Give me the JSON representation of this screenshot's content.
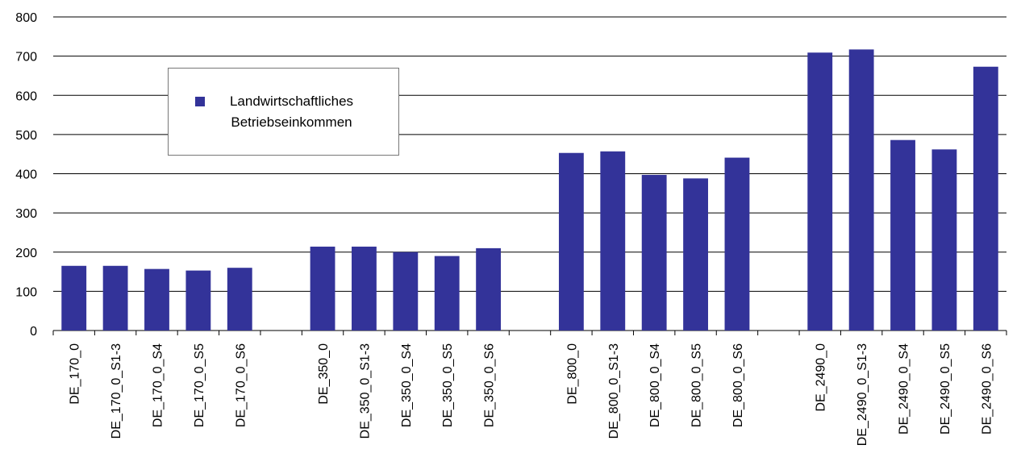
{
  "chart_data": {
    "type": "bar",
    "categories": [
      "DE_170_0",
      "DE_170_0_S1-3",
      "DE_170_0_S4",
      "DE_170_0_S5",
      "DE_170_0_S6",
      null,
      "DE_350_0",
      "DE_350_0_S1-3",
      "DE_350_0_S4",
      "DE_350_0_S5",
      "DE_350_0_S6",
      null,
      "DE_800_0",
      "DE_800_0_S1-3",
      "DE_800_0_S4",
      "DE_800_0_S5",
      "DE_800_0_S6",
      null,
      "DE_2490_0",
      "DE_2490_0_S1-3",
      "DE_2490_0_S4",
      "DE_2490_0_S5",
      "DE_2490_0_S6"
    ],
    "series": [
      {
        "name": "Landwirtschaftliches Betriebseinkommen",
        "color": "#333399",
        "values": [
          165,
          165,
          157,
          153,
          160,
          null,
          214,
          214,
          200,
          190,
          210,
          null,
          453,
          457,
          397,
          388,
          441,
          null,
          709,
          717,
          486,
          462,
          673
        ]
      }
    ],
    "ylim": [
      0,
      800
    ],
    "yticks": [
      0,
      100,
      200,
      300,
      400,
      500,
      600,
      700,
      800
    ],
    "grid": true,
    "legend": "upper left"
  }
}
